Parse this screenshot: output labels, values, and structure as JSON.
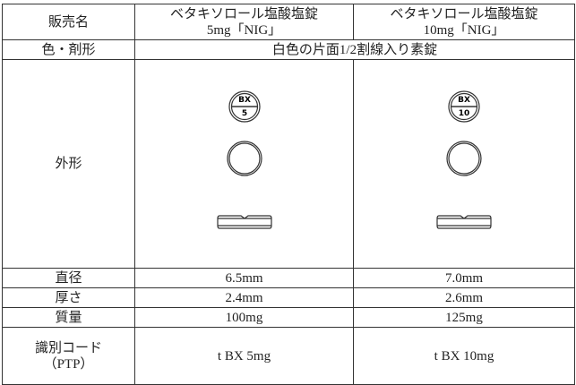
{
  "table": {
    "header": {
      "label": "販売名",
      "products": [
        [
          "ベタキソロール塩酸塩錠",
          "5mg「NIG」"
        ],
        [
          "ベタキソロール塩酸塩錠",
          "10mg「NIG」"
        ]
      ]
    },
    "color_row": {
      "label": "色・剤形",
      "value": "白色の片面1/2割線入り素錠"
    },
    "shape_row": {
      "label": "外形",
      "markings": [
        {
          "top": "BX",
          "bottom": "5"
        },
        {
          "top": "BX",
          "bottom": "10"
        }
      ]
    },
    "rows": [
      [
        "直径",
        "6.5mm",
        "7.0mm"
      ],
      [
        "厚さ",
        "2.4mm",
        "2.6mm"
      ],
      [
        "質量",
        "100mg",
        "125mg"
      ]
    ],
    "code_row": {
      "label": [
        "識別コード",
        "（PTP）"
      ],
      "values": [
        "t BX 5mg",
        "t BX 10mg"
      ]
    }
  }
}
